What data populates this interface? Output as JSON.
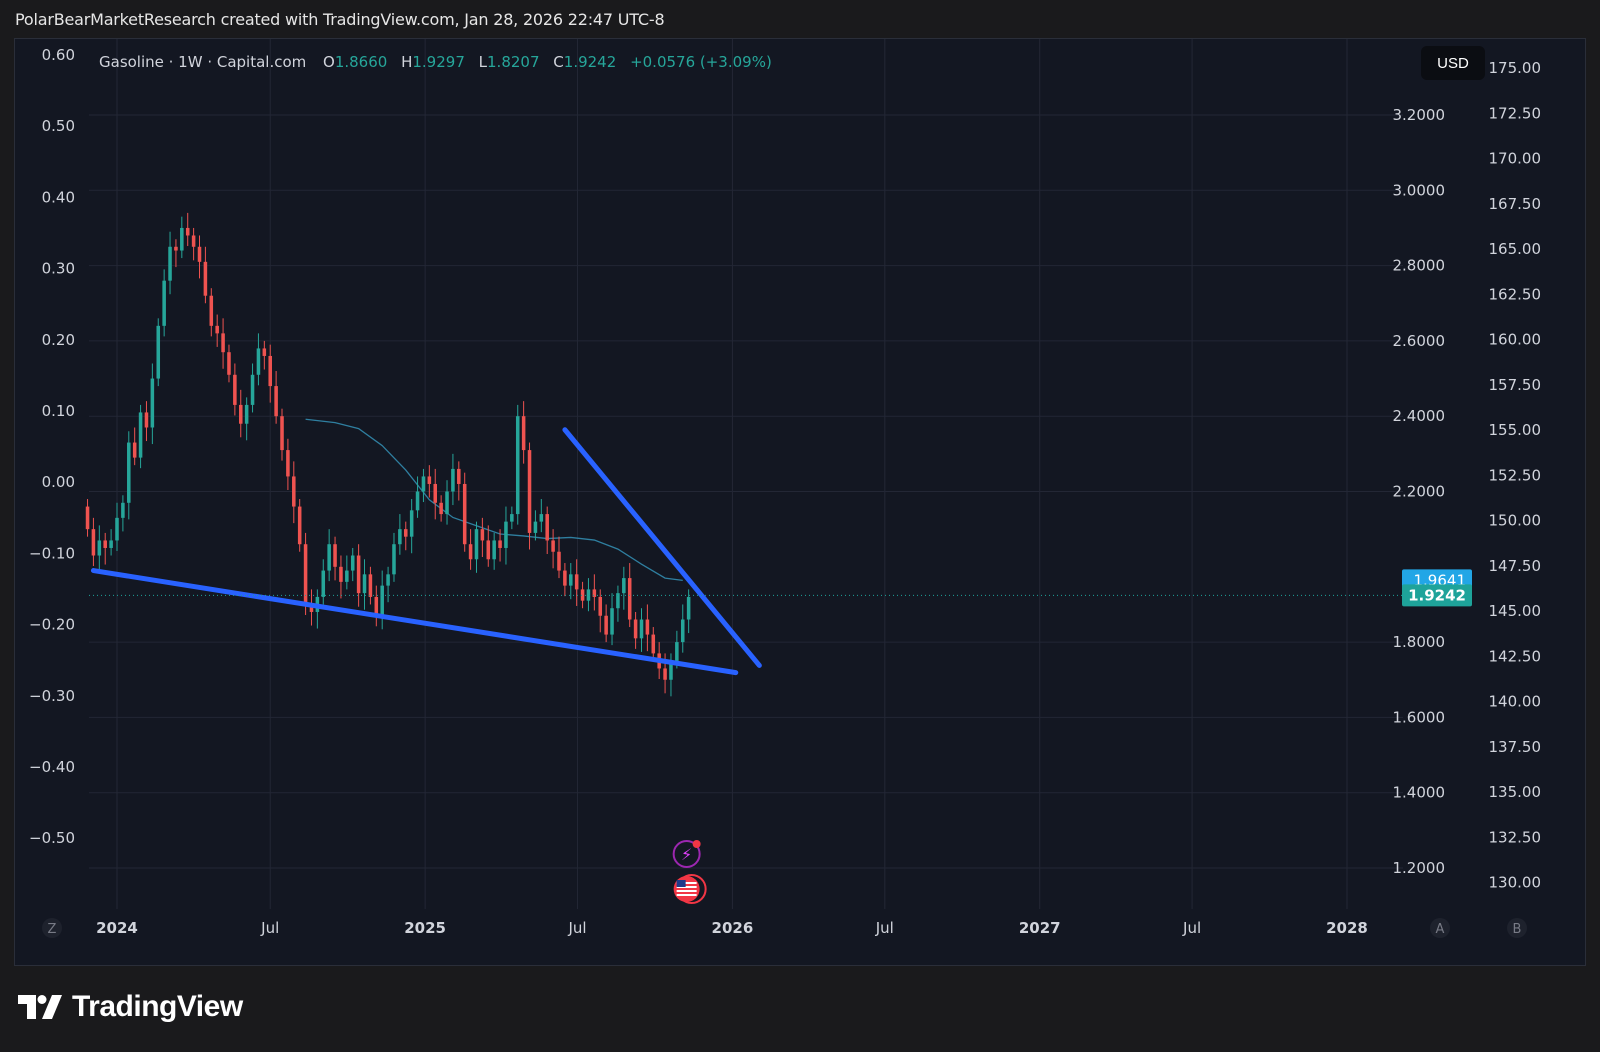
{
  "attribution": "PolarBearMarketResearch created with TradingView.com, Jan 28, 2026 22:47 UTC-8",
  "brand": {
    "name": "TradingView",
    "icon": "tradingview-logo-icon"
  },
  "header": {
    "symbol": "Gasoline · 1W · Capital.com",
    "o_label": "O",
    "o_value": "1.8660",
    "h_label": "H",
    "h_value": "1.9297",
    "l_label": "L",
    "l_value": "1.8207",
    "c_label": "C",
    "c_value": "1.9242",
    "change": "+0.0576 (+3.09%)"
  },
  "currency_button": "USD",
  "corner_buttons": {
    "left": "Z",
    "right_a": "A",
    "right_b": "B"
  },
  "colors": {
    "up": "#26a69a",
    "down": "#ef5350",
    "trendline": "#2962ff",
    "ma": "#2f7fa0",
    "price_label": "#1ea39a",
    "ma_label": "#22a6e6",
    "background": "#131722",
    "grid": "#232735"
  },
  "chart_data": {
    "type": "candlestick",
    "interval": "1W",
    "last_price": "1.9242",
    "ma_last": "1.9641",
    "x_axis_labels": [
      "2024",
      "Jul",
      "2025",
      "Jul",
      "2026",
      "Jul",
      "2027",
      "Jul",
      "2028"
    ],
    "x_axis_dates": [
      "2024-01-01",
      "2024-07-01",
      "2025-01-01",
      "2025-07-01",
      "2026-01-01",
      "2026-07-01",
      "2027-01-01",
      "2027-07-01",
      "2028-01-01"
    ],
    "price_axis": {
      "ticks": [
        "3.2000",
        "3.0000",
        "2.8000",
        "2.6000",
        "2.4000",
        "2.2000",
        "1.8000",
        "1.6000",
        "1.4000",
        "1.2000"
      ],
      "range": [
        1.155,
        3.335
      ]
    },
    "left_axis": {
      "ticks": [
        "0.60",
        "0.50",
        "0.40",
        "0.30",
        "0.20",
        "0.10",
        "0.00",
        "−0.10",
        "−0.20",
        "−0.30",
        "−0.40",
        "−0.50"
      ],
      "range": [
        -0.6,
        0.64
      ]
    },
    "right_axis": {
      "ticks": [
        "175.00",
        "172.50",
        "170.00",
        "167.50",
        "165.00",
        "162.50",
        "160.00",
        "157.50",
        "155.00",
        "152.50",
        "150.00",
        "147.50",
        "145.00",
        "142.50",
        "140.00",
        "137.50",
        "135.00",
        "132.50",
        "130.00"
      ],
      "range": [
        129.2,
        176.3
      ]
    },
    "series": [
      {
        "name": "Gasoline",
        "kind": "ohlc",
        "start": "2023-11-27",
        "step_days": 7,
        "close": [
          2.1,
          2.03,
          2.07,
          2.05,
          2.07,
          2.13,
          2.17,
          2.33,
          2.29,
          2.41,
          2.37,
          2.5,
          2.64,
          2.76,
          2.85,
          2.84,
          2.9,
          2.88,
          2.85,
          2.81,
          2.72,
          2.64,
          2.62,
          2.57,
          2.51,
          2.43,
          2.38,
          2.43,
          2.51,
          2.58,
          2.56,
          2.48,
          2.4,
          2.31,
          2.24,
          2.16,
          2.06,
          1.9,
          1.88,
          1.92,
          1.99,
          2.06,
          2.0,
          1.96,
          1.99,
          2.03,
          1.93,
          1.98,
          1.92,
          1.87,
          1.95,
          1.98,
          2.06,
          2.1,
          2.08,
          2.15,
          2.2,
          2.24,
          2.22,
          2.17,
          2.14,
          2.2,
          2.26,
          2.22,
          2.06,
          2.02,
          2.1,
          2.07,
          2.02,
          2.07,
          2.05,
          2.12,
          2.14,
          2.4,
          2.31,
          2.09,
          2.12,
          2.14,
          2.07,
          2.04,
          1.99,
          1.95,
          1.98,
          1.94,
          1.91,
          1.94,
          1.92,
          1.87,
          1.82,
          1.89,
          1.93,
          1.97,
          1.86,
          1.81,
          1.86,
          1.82,
          1.77,
          1.73,
          1.7,
          1.75,
          1.8,
          1.86,
          1.92
        ],
        "open_high_low_note": "each candle opens at the prior close"
      },
      {
        "name": "MA",
        "kind": "line",
        "start_index": 37,
        "points": [
          [
            37,
            2.392
          ],
          [
            42,
            2.383
          ],
          [
            46,
            2.367
          ],
          [
            50,
            2.322
          ],
          [
            54,
            2.257
          ],
          [
            58,
            2.178
          ],
          [
            62,
            2.131
          ],
          [
            66,
            2.109
          ],
          [
            70,
            2.087
          ],
          [
            74,
            2.082
          ],
          [
            78,
            2.075
          ],
          [
            82,
            2.078
          ],
          [
            86,
            2.071
          ],
          [
            90,
            2.047
          ],
          [
            94,
            2.007
          ],
          [
            98,
            1.97
          ],
          [
            101,
            1.964
          ]
        ]
      }
    ],
    "drawings": [
      {
        "kind": "trendline",
        "from": [
          "2023-12-04",
          1.99
        ],
        "to": [
          "2026-01-05",
          1.719
        ]
      },
      {
        "kind": "trendline",
        "from": [
          "2025-06-16",
          2.364
        ],
        "to": [
          "2026-02-02",
          1.738
        ]
      }
    ],
    "events": [
      "flash-news-icon",
      "us-flag-event-icon"
    ]
  }
}
